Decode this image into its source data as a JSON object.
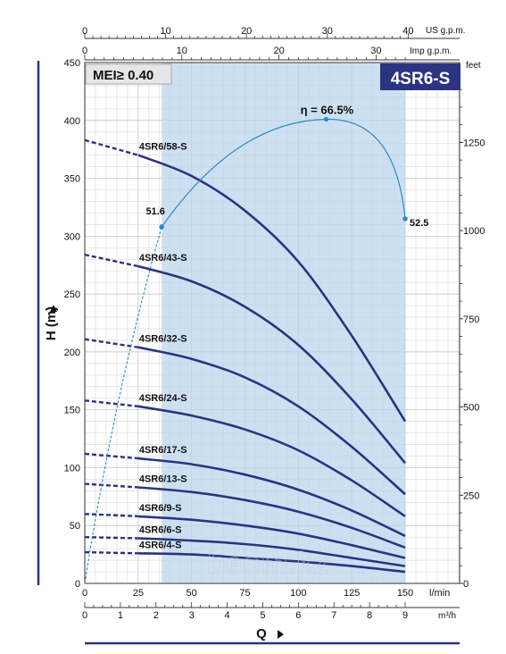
{
  "chart_data": {
    "type": "line",
    "badges": {
      "mei": "MEI≥ 0.40",
      "model": "4SR6-S"
    },
    "xlabel": "Q",
    "ylabel": "H (m)",
    "axes": {
      "x_lmin": {
        "unit": "l/min",
        "range": [
          0,
          150
        ],
        "ticks": [
          0,
          25,
          50,
          75,
          100,
          125,
          150
        ]
      },
      "x_m3h": {
        "unit": "m³/h",
        "range": [
          0,
          9
        ],
        "ticks": [
          0,
          1,
          2,
          3,
          4,
          5,
          6,
          7,
          8,
          9
        ]
      },
      "x_usgpm": {
        "unit": "US g.p.m.",
        "ticks": [
          0,
          10,
          20,
          30,
          40
        ]
      },
      "x_impgpm": {
        "unit": "Imp g.p.m.",
        "ticks": [
          0,
          10,
          20,
          30
        ]
      },
      "y_m": {
        "unit": "H (m)",
        "range": [
          0,
          450
        ],
        "ticks": [
          0,
          50,
          100,
          150,
          200,
          250,
          300,
          350,
          400,
          450
        ]
      },
      "y_feet": {
        "unit": "feet",
        "ticks": [
          0,
          250,
          500,
          750,
          1000,
          1250
        ]
      }
    },
    "recommended_range_lmin": [
      36,
      150
    ],
    "efficiency": {
      "label": "η = 66.5%",
      "peak": [
        113,
        401
      ],
      "points": [
        {
          "x": 36,
          "y": 308,
          "label": "51.6"
        },
        {
          "x": 150,
          "y": 315,
          "label": "52.5"
        }
      ]
    },
    "series": [
      {
        "name": "4SR6/58-S",
        "h0": 383,
        "points": [
          [
            25,
            370
          ],
          [
            50,
            352
          ],
          [
            75,
            322
          ],
          [
            100,
            278
          ],
          [
            125,
            214
          ],
          [
            150,
            140
          ]
        ]
      },
      {
        "name": "4SR6/43-S",
        "h0": 284,
        "points": [
          [
            25,
            274
          ],
          [
            50,
            261
          ],
          [
            75,
            239
          ],
          [
            100,
            206
          ],
          [
            125,
            159
          ],
          [
            150,
            104
          ]
        ]
      },
      {
        "name": "4SR6/32-S",
        "h0": 211,
        "points": [
          [
            25,
            204
          ],
          [
            50,
            194
          ],
          [
            75,
            178
          ],
          [
            100,
            153
          ],
          [
            125,
            118
          ],
          [
            150,
            77
          ]
        ]
      },
      {
        "name": "4SR6/24-S",
        "h0": 158,
        "points": [
          [
            25,
            153
          ],
          [
            50,
            145
          ],
          [
            75,
            133
          ],
          [
            100,
            115
          ],
          [
            125,
            89
          ],
          [
            150,
            58
          ]
        ]
      },
      {
        "name": "4SR6/17-S",
        "h0": 112,
        "points": [
          [
            25,
            108
          ],
          [
            50,
            103
          ],
          [
            75,
            94
          ],
          [
            100,
            81
          ],
          [
            125,
            63
          ],
          [
            150,
            41
          ]
        ]
      },
      {
        "name": "4SR6/13-S",
        "h0": 86,
        "points": [
          [
            25,
            83
          ],
          [
            50,
            79
          ],
          [
            75,
            72
          ],
          [
            100,
            62
          ],
          [
            125,
            48
          ],
          [
            150,
            31
          ]
        ]
      },
      {
        "name": "4SR6/9-S",
        "h0": 60,
        "points": [
          [
            25,
            58
          ],
          [
            50,
            55
          ],
          [
            75,
            50
          ],
          [
            100,
            43
          ],
          [
            125,
            33
          ],
          [
            150,
            22
          ]
        ]
      },
      {
        "name": "4SR6/6-S",
        "h0": 40,
        "points": [
          [
            25,
            39
          ],
          [
            50,
            37
          ],
          [
            75,
            34
          ],
          [
            100,
            29
          ],
          [
            125,
            22
          ],
          [
            150,
            15
          ]
        ]
      },
      {
        "name": "4SR6/4-S",
        "h0": 27,
        "points": [
          [
            25,
            26
          ],
          [
            50,
            25
          ],
          [
            75,
            22
          ],
          [
            100,
            19
          ],
          [
            125,
            15
          ],
          [
            150,
            10
          ]
        ]
      }
    ],
    "watermark": "beom.kz"
  }
}
